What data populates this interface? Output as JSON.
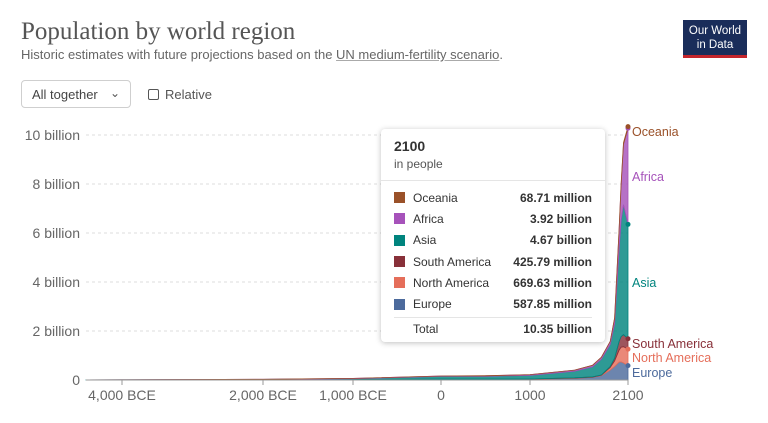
{
  "header": {
    "title": "Population by world region",
    "subtitle_prefix": "Historic estimates with future projections based on the ",
    "subtitle_link": "UN medium-fertility scenario",
    "subtitle_suffix": "."
  },
  "logo": {
    "line1": "Our World",
    "line2": "in Data"
  },
  "controls": {
    "dropdown_label": "All together",
    "relative_label": "Relative"
  },
  "tooltip": {
    "year": "2100",
    "unit": "in people",
    "rows": [
      {
        "name": "Oceania",
        "value": "68.71 million",
        "color": "#9a5129"
      },
      {
        "name": "Africa",
        "value": "3.92 billion",
        "color": "#a652ba"
      },
      {
        "name": "Asia",
        "value": "4.67 billion",
        "color": "#00847e"
      },
      {
        "name": "South America",
        "value": "425.79 million",
        "color": "#883039"
      },
      {
        "name": "North America",
        "value": "669.63 million",
        "color": "#e56e5a"
      },
      {
        "name": "Europe",
        "value": "587.85 million",
        "color": "#4c6a9c"
      }
    ],
    "total_label": "Total",
    "total_value": "10.35 billion"
  },
  "chart_data": {
    "type": "area",
    "title": "Population by world region",
    "subtitle": "Historic estimates with future projections based on the UN medium-fertility scenario.",
    "x_tick_labels": [
      "4,000 BCE",
      "2,000 BCE",
      "1,000 BCE",
      "0",
      "1000",
      "2100"
    ],
    "x_tick_values": [
      -4000,
      -2000,
      -1000,
      0,
      1000,
      2100
    ],
    "y_tick_labels": [
      "0",
      "2 billion",
      "4 billion",
      "6 billion",
      "8 billion",
      "10 billion"
    ],
    "y_tick_values": [
      0,
      2,
      4,
      6,
      8,
      10
    ],
    "ylim": [
      0,
      10.4
    ],
    "y_unit": "billion people",
    "x": [
      -10000,
      -4000,
      -2000,
      -1000,
      0,
      500,
      1000,
      1500,
      1700,
      1800,
      1900,
      1950,
      2000,
      2023,
      2050,
      2100
    ],
    "series": [
      {
        "name": "Europe",
        "color": "#4c6a9c",
        "values": [
          0.0005,
          0.002,
          0.006,
          0.015,
          0.03,
          0.027,
          0.031,
          0.07,
          0.11,
          0.18,
          0.41,
          0.55,
          0.73,
          0.74,
          0.7,
          0.588
        ]
      },
      {
        "name": "North America",
        "color": "#e56e5a",
        "values": [
          0.0002,
          0.0005,
          0.001,
          0.002,
          0.003,
          0.003,
          0.004,
          0.007,
          0.006,
          0.01,
          0.1,
          0.23,
          0.49,
          0.6,
          0.66,
          0.67
        ]
      },
      {
        "name": "South America",
        "color": "#883039",
        "values": [
          0.0002,
          0.0005,
          0.001,
          0.002,
          0.003,
          0.003,
          0.005,
          0.011,
          0.01,
          0.014,
          0.04,
          0.11,
          0.35,
          0.43,
          0.49,
          0.426
        ]
      },
      {
        "name": "Asia",
        "color": "#00847e",
        "values": [
          0.002,
          0.005,
          0.015,
          0.035,
          0.11,
          0.12,
          0.15,
          0.27,
          0.41,
          0.64,
          0.9,
          1.4,
          3.74,
          4.75,
          5.3,
          4.67
        ]
      },
      {
        "name": "Africa",
        "color": "#a652ba",
        "values": [
          0.001,
          0.001,
          0.004,
          0.01,
          0.018,
          0.02,
          0.03,
          0.045,
          0.06,
          0.08,
          0.12,
          0.23,
          0.82,
          1.43,
          2.48,
          3.92
        ]
      },
      {
        "name": "Oceania",
        "color": "#9a5129",
        "values": [
          0.0001,
          0.0002,
          0.0004,
          0.0006,
          0.001,
          0.001,
          0.001,
          0.002,
          0.002,
          0.002,
          0.006,
          0.013,
          0.031,
          0.045,
          0.058,
          0.069
        ]
      }
    ],
    "end_labels": [
      "Oceania",
      "Africa",
      "Asia",
      "South America",
      "North America",
      "Europe"
    ],
    "grid": true,
    "legend": "end-of-line labels"
  }
}
